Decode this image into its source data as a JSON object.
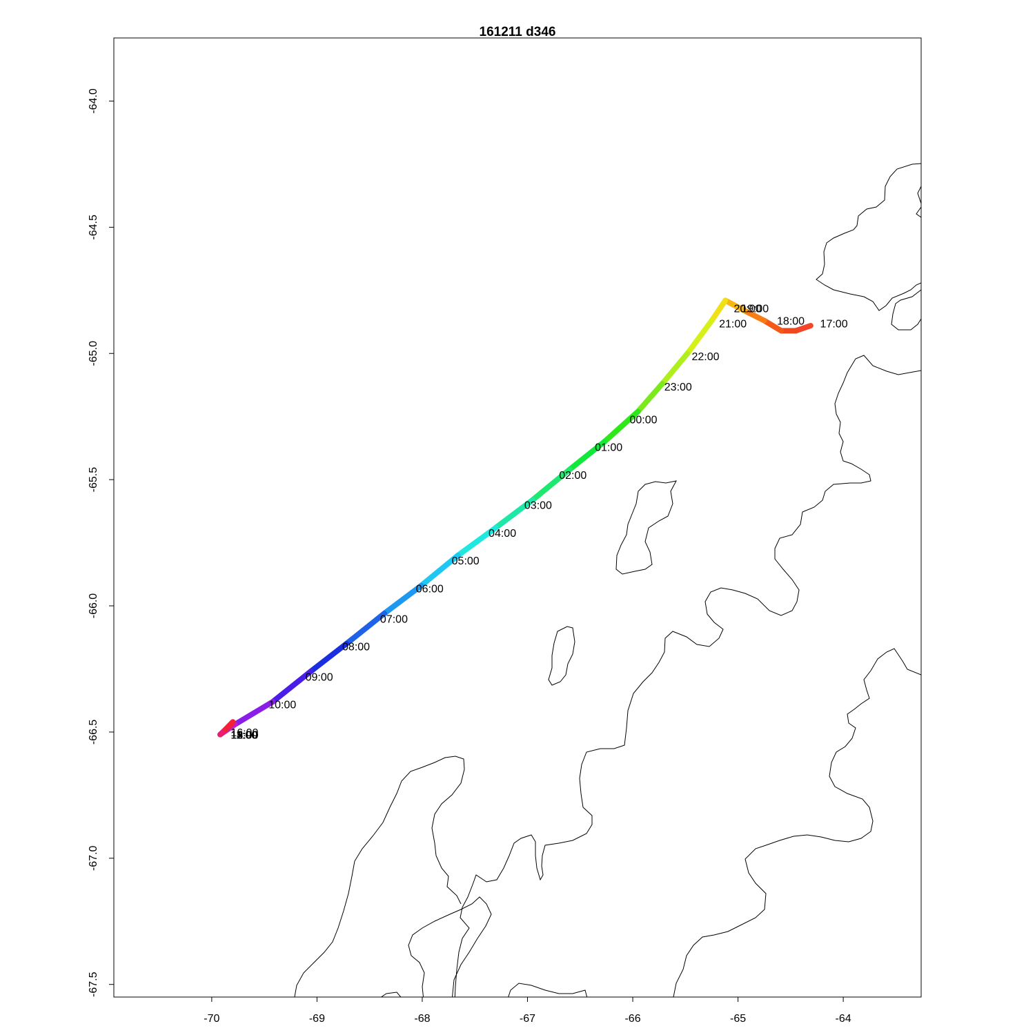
{
  "title": "161211   d346",
  "chart_data": {
    "type": "map-track",
    "title": "161211   d346",
    "xlim": [
      -70.93,
      -63.26
    ],
    "ylim": [
      -67.55,
      -63.75
    ],
    "x_ticks": [
      -70,
      -69,
      -68,
      -67,
      -66,
      -65,
      -64
    ],
    "y_ticks": [
      -64.0,
      -64.5,
      -65.0,
      -65.5,
      -66.0,
      -66.5,
      -67.0,
      -67.5
    ],
    "x_tick_labels": [
      "-70",
      "-69",
      "-68",
      "-67",
      "-66",
      "-65",
      "-64"
    ],
    "y_tick_labels": [
      "-64.0",
      "-64.5",
      "-65.0",
      "-65.5",
      "-66.0",
      "-66.5",
      "-67.0",
      "-67.5"
    ],
    "track": [
      {
        "lon": -64.31,
        "lat": -64.89,
        "color": "#f23a3a"
      },
      {
        "lon": -64.45,
        "lat": -64.91,
        "color": "#f2452a"
      },
      {
        "lon": -64.59,
        "lat": -64.91,
        "color": "#f0481e"
      },
      {
        "lon": -64.75,
        "lat": -64.87,
        "color": "#f5591a"
      },
      {
        "lon": -64.94,
        "lat": -64.83,
        "color": "#f77d14"
      },
      {
        "lon": -65.12,
        "lat": -64.79,
        "color": "#f9b511"
      },
      {
        "lon": -65.25,
        "lat": -64.87,
        "color": "#f0e01a"
      },
      {
        "lon": -65.48,
        "lat": -65.0,
        "color": "#d6f01a"
      },
      {
        "lon": -65.72,
        "lat": -65.12,
        "color": "#b0ef1e"
      },
      {
        "lon": -65.95,
        "lat": -65.23,
        "color": "#7ce81e"
      },
      {
        "lon": -66.27,
        "lat": -65.35,
        "color": "#2ee81a"
      },
      {
        "lon": -66.6,
        "lat": -65.46,
        "color": "#12e83a"
      },
      {
        "lon": -66.95,
        "lat": -65.58,
        "color": "#1ee870"
      },
      {
        "lon": -67.3,
        "lat": -65.69,
        "color": "#1ee8a8"
      },
      {
        "lon": -67.66,
        "lat": -65.8,
        "color": "#1ee8e0"
      },
      {
        "lon": -68.01,
        "lat": -65.92,
        "color": "#1ec8f2"
      },
      {
        "lon": -68.36,
        "lat": -66.03,
        "color": "#1e98f0"
      },
      {
        "lon": -68.72,
        "lat": -66.15,
        "color": "#1e62e8"
      },
      {
        "lon": -69.06,
        "lat": -66.26,
        "color": "#1a2ee0"
      },
      {
        "lon": -69.42,
        "lat": -66.38,
        "color": "#4a1ee8"
      },
      {
        "lon": -69.78,
        "lat": -66.47,
        "color": "#8a1ee8"
      },
      {
        "lon": -69.92,
        "lat": -66.51,
        "color": "#c21ec8"
      },
      {
        "lon": -69.87,
        "lat": -66.49,
        "color": "#e81e70"
      },
      {
        "lon": -69.8,
        "lat": -66.46,
        "color": "#f2203a"
      }
    ],
    "time_labels": [
      {
        "text": "17:00",
        "lon": -64.22,
        "lat": -64.88
      },
      {
        "text": "18:00",
        "lon": -64.63,
        "lat": -64.87
      },
      {
        "text": "19:00",
        "lon": -64.97,
        "lat": -64.82
      },
      {
        "text": "20:00",
        "lon": -65.04,
        "lat": -64.82
      },
      {
        "text": "21:00",
        "lon": -65.18,
        "lat": -64.88
      },
      {
        "text": "22:00",
        "lon": -65.44,
        "lat": -65.01
      },
      {
        "text": "23:00",
        "lon": -65.7,
        "lat": -65.13
      },
      {
        "text": "00:00",
        "lon": -66.03,
        "lat": -65.26
      },
      {
        "text": "01:00",
        "lon": -66.36,
        "lat": -65.37
      },
      {
        "text": "02:00",
        "lon": -66.7,
        "lat": -65.48
      },
      {
        "text": "03:00",
        "lon": -67.03,
        "lat": -65.6
      },
      {
        "text": "04:00",
        "lon": -67.37,
        "lat": -65.71
      },
      {
        "text": "05:00",
        "lon": -67.72,
        "lat": -65.82
      },
      {
        "text": "06:00",
        "lon": -68.06,
        "lat": -65.93
      },
      {
        "text": "07:00",
        "lon": -68.4,
        "lat": -66.05
      },
      {
        "text": "08:00",
        "lon": -68.76,
        "lat": -66.16
      },
      {
        "text": "09:00",
        "lon": -69.11,
        "lat": -66.28
      },
      {
        "text": "10:00",
        "lon": -69.46,
        "lat": -66.39
      },
      {
        "text": "11:00",
        "lon": -69.82,
        "lat": -66.51
      },
      {
        "text": "12:00",
        "lon": -69.82,
        "lat": -66.51
      },
      {
        "text": "13:00",
        "lon": -69.82,
        "lat": -66.51
      },
      {
        "text": "14:00",
        "lon": -69.82,
        "lat": -66.51
      },
      {
        "text": "15:00",
        "lon": -69.82,
        "lat": -66.51
      },
      {
        "text": "16:00",
        "lon": -69.82,
        "lat": -66.5
      }
    ]
  }
}
